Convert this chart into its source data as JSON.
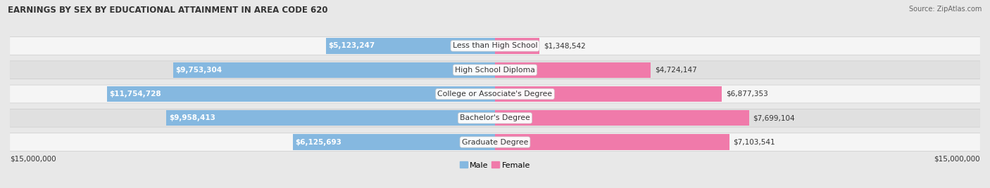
{
  "title": "EARNINGS BY SEX BY EDUCATIONAL ATTAINMENT IN AREA CODE 620",
  "source": "Source: ZipAtlas.com",
  "categories": [
    "Less than High School",
    "High School Diploma",
    "College or Associate's Degree",
    "Bachelor's Degree",
    "Graduate Degree"
  ],
  "male_values": [
    5123247,
    9753304,
    11754728,
    9958413,
    6125693
  ],
  "female_values": [
    1348542,
    4724147,
    6877353,
    7699104,
    7103541
  ],
  "male_color": "#85b8e0",
  "female_color": "#f07aaa",
  "x_max": 15000000,
  "x_label_left": "$15,000,000",
  "x_label_right": "$15,000,000",
  "male_label": "Male",
  "female_label": "Female",
  "bg_color": "#e8e8e8",
  "row_bg_colors": [
    "#f5f5f5",
    "#e0e0e0",
    "#f5f5f5",
    "#e0e0e0",
    "#f5f5f5"
  ]
}
